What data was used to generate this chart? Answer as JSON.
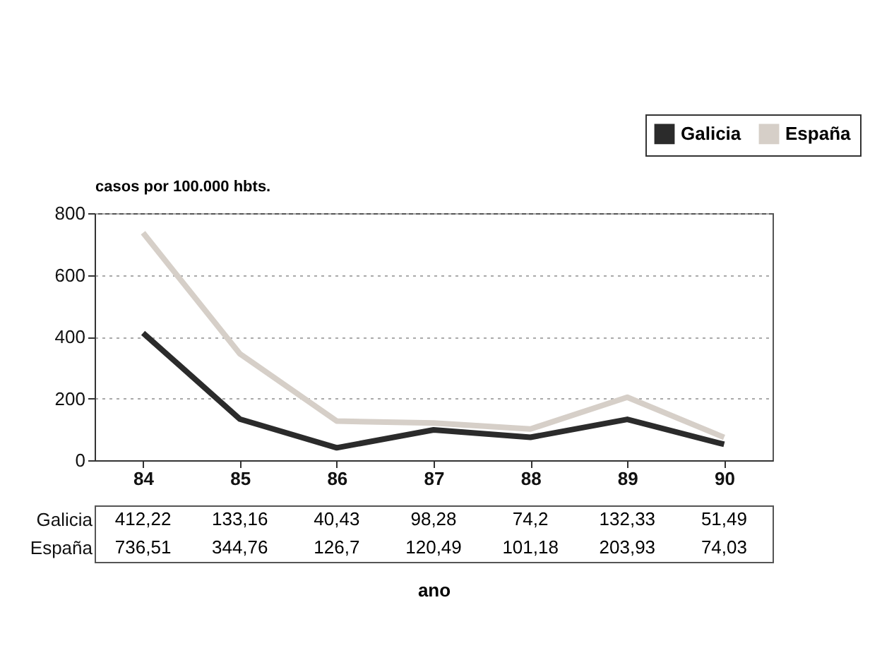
{
  "chart_data": {
    "type": "line",
    "ylabel": "casos por 100.000 hbts.",
    "xlabel": "ano",
    "categories": [
      "84",
      "85",
      "86",
      "87",
      "88",
      "89",
      "90"
    ],
    "series": [
      {
        "name": "Galicia",
        "color": "#2b2b2b",
        "values": [
          412.22,
          133.16,
          40.43,
          98.28,
          74.2,
          132.33,
          51.49
        ],
        "value_labels": [
          "412,22",
          "133,16",
          "40,43",
          "98,28",
          "74,2",
          "132,33",
          "51,49"
        ]
      },
      {
        "name": "España",
        "color": "#d6cfc8",
        "values": [
          736.51,
          344.76,
          126.7,
          120.49,
          101.18,
          203.93,
          74.03
        ],
        "value_labels": [
          "736,51",
          "344,76",
          "126,7",
          "120,49",
          "101,18",
          "203,93",
          "74,03"
        ]
      }
    ],
    "ylim": [
      0,
      800
    ],
    "yticks": [
      0,
      200,
      400,
      600,
      800
    ],
    "grid": "y",
    "legend": "top right"
  }
}
